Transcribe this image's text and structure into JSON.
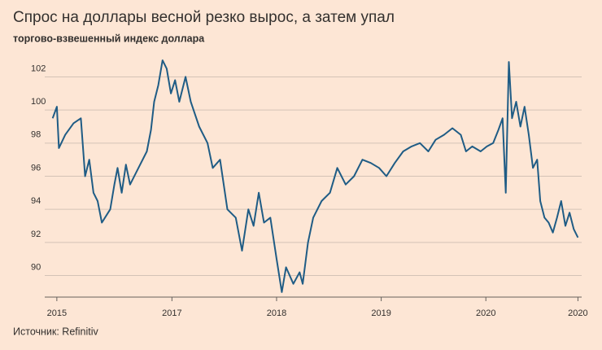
{
  "chart_data": {
    "type": "line",
    "title": "Спрос на доллары весной резко вырос, а затем упал",
    "subtitle": "торгово-взвешенный индекс доллара",
    "source": "Источник: Refinitiv",
    "x": [
      2015.86,
      2015.9,
      2015.92,
      2015.98,
      2016.06,
      2016.13,
      2016.17,
      2016.21,
      2016.25,
      2016.29,
      2016.33,
      2016.41,
      2016.45,
      2016.48,
      2016.52,
      2016.56,
      2016.6,
      2016.68,
      2016.76,
      2016.8,
      2016.83,
      2016.87,
      2016.91,
      2016.95,
      2016.99,
      2017.03,
      2017.07,
      2017.13,
      2017.18,
      2017.26,
      2017.34,
      2017.39,
      2017.46,
      2017.53,
      2017.61,
      2017.67,
      2017.73,
      2017.78,
      2017.83,
      2017.88,
      2017.94,
      2018.0,
      2018.05,
      2018.09,
      2018.16,
      2018.22,
      2018.25,
      2018.3,
      2018.35,
      2018.43,
      2018.51,
      2018.58,
      2018.66,
      2018.74,
      2018.82,
      2018.9,
      2018.98,
      2019.05,
      2019.13,
      2019.21,
      2019.29,
      2019.37,
      2019.45,
      2019.52,
      2019.6,
      2019.68,
      2019.76,
      2019.81,
      2019.87,
      2019.95,
      2020.01,
      2020.07,
      2020.12,
      2020.16,
      2020.19,
      2020.22,
      2020.25,
      2020.29,
      2020.33,
      2020.37,
      2020.41,
      2020.45,
      2020.49,
      2020.52,
      2020.56,
      2020.6,
      2020.64,
      2020.68,
      2020.72,
      2020.76,
      2020.8,
      2020.84,
      2020.88
    ],
    "series": [
      {
        "color": "#1f5c85",
        "values": [
          99.5,
          100.2,
          97.7,
          98.5,
          99.2,
          99.5,
          96.0,
          97.0,
          95.0,
          94.5,
          93.2,
          94.0,
          95.5,
          96.5,
          95.0,
          96.7,
          95.5,
          96.5,
          97.5,
          98.8,
          100.5,
          101.5,
          103.0,
          102.5,
          101.0,
          101.8,
          100.5,
          102.0,
          100.5,
          99.0,
          98.0,
          96.5,
          97.0,
          94.0,
          93.5,
          91.5,
          94.0,
          93.0,
          95.0,
          93.2,
          93.5,
          91.0,
          89.0,
          90.5,
          89.5,
          90.2,
          89.5,
          92.0,
          93.5,
          94.5,
          95.0,
          96.5,
          95.5,
          96.0,
          97.0,
          96.8,
          96.5,
          96.0,
          96.8,
          97.5,
          97.8,
          98.0,
          97.5,
          98.2,
          98.5,
          98.9,
          98.5,
          97.5,
          97.8,
          97.5,
          97.8,
          98.0,
          98.8,
          99.5,
          95.0,
          102.9,
          99.5,
          100.5,
          99.0,
          100.2,
          98.5,
          96.5,
          97.0,
          94.5,
          93.5,
          93.2,
          92.6,
          93.5,
          94.5,
          93.0,
          93.8,
          92.8,
          92.3
        ]
      }
    ],
    "xlim": [
      2015.8,
      2020.9
    ],
    "xticks": [
      {
        "value": 2015.9,
        "label": "2015"
      },
      2017,
      2018,
      2019,
      2020,
      {
        "value": 2020.88,
        "label": "2020"
      }
    ],
    "ylim": [
      88.7,
      103.3
    ],
    "yticks": [
      90,
      92,
      94,
      96,
      98,
      100,
      102
    ],
    "grid": true
  }
}
